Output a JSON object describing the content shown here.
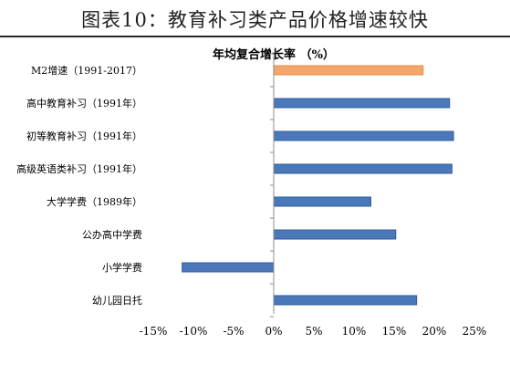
{
  "figure": {
    "title": "图表10：教育补习类产品价格增速较快"
  },
  "chart_data": {
    "type": "bar",
    "orientation": "horizontal",
    "title": "年均复合增长率 （%）",
    "xlabel": "",
    "ylabel": "",
    "xlim": [
      -15,
      25
    ],
    "xticks": [
      -15,
      -10,
      -5,
      0,
      5,
      10,
      15,
      20,
      25
    ],
    "xtick_labels": [
      "-15%",
      "-10%",
      "-5%",
      "0%",
      "5%",
      "10%",
      "15%",
      "20%",
      "25%"
    ],
    "grid": false,
    "legend": "none",
    "categories": [
      "M2增速（1991-2017）",
      "高中教育补习（1991年）",
      "初等教育补习（1991年）",
      "高级英语类补习（1991年）",
      "大学学费（1989年）",
      "公办高中学费",
      "小学学费",
      "幼儿园日托"
    ],
    "values": [
      18.6,
      21.9,
      22.4,
      22.2,
      12.1,
      15.2,
      -11.4,
      17.8
    ],
    "colors": [
      "#f6a66b",
      "#4a78b8",
      "#4a78b8",
      "#4a78b8",
      "#4a78b8",
      "#4a78b8",
      "#4a78b8",
      "#4a78b8"
    ],
    "bar_edge_colors": [
      "#e8894a",
      "#2f5c9c",
      "#2f5c9c",
      "#2f5c9c",
      "#2f5c9c",
      "#2f5c9c",
      "#2f5c9c",
      "#2f5c9c"
    ]
  }
}
